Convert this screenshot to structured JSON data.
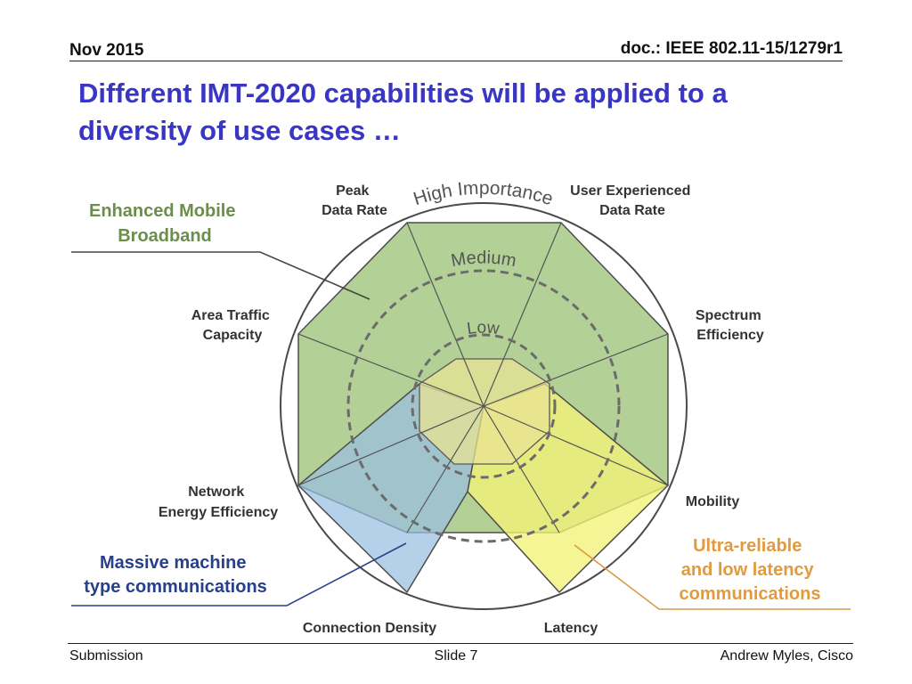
{
  "header": {
    "date": "Nov 2015",
    "doc": "doc.: IEEE 802.11-15/1279r1"
  },
  "title": "Different IMT-2020 capabilities will be applied to a diversity of use cases …",
  "diagram": {
    "axes": {
      "peak": [
        "Peak",
        "Data Rate"
      ],
      "user": [
        "User Experienced",
        "Data Rate"
      ],
      "spectrum": [
        "Spectrum",
        "Efficiency"
      ],
      "mobility": "Mobility",
      "latency": "Latency",
      "density": "Connection Density",
      "energy": [
        "Network",
        "Energy Efficiency"
      ],
      "area": [
        "Area Traffic",
        "Capacity"
      ]
    },
    "rings": {
      "high": "High Importance",
      "medium": "Medium",
      "low": "Low"
    },
    "use_cases": {
      "embb": {
        "label": [
          "Enhanced Mobile",
          "Broadband"
        ],
        "color": "#a9c987"
      },
      "mmtc": {
        "label": [
          "Massive machine",
          "type communications"
        ],
        "color": "#98bee0"
      },
      "urllc": {
        "label": [
          "Ultra-reliable",
          "and low latency",
          "communications"
        ],
        "color": "#f3f277"
      }
    }
  },
  "footer": {
    "left": "Submission",
    "center": "Slide 7",
    "right": "Andrew Myles, Cisco"
  }
}
